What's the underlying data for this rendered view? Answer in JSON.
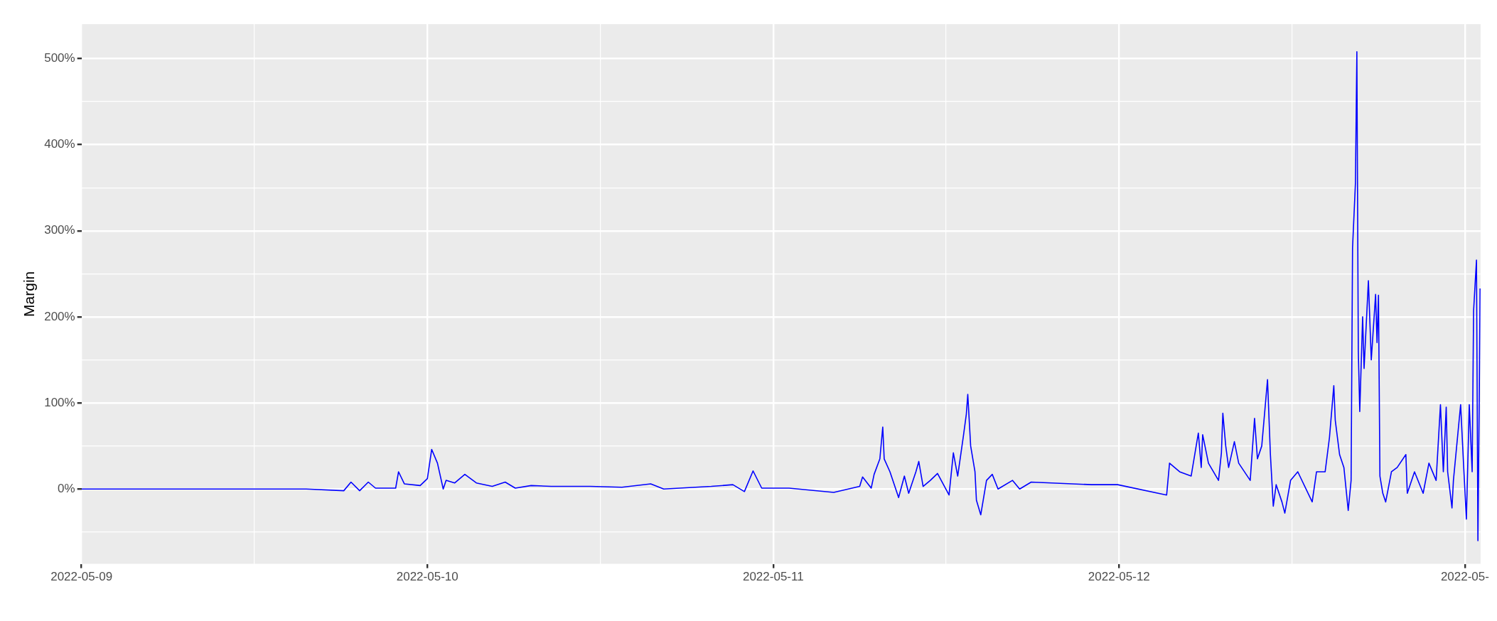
{
  "chart_data": {
    "type": "line",
    "ylabel": "Margin",
    "x": [
      "2022-05-09T00:00",
      "2022-05-09T15:36",
      "2022-05-09T18:12",
      "2022-05-09T18:42",
      "2022-05-09T19:18",
      "2022-05-09T19:54",
      "2022-05-09T20:24",
      "2022-05-09T21:48",
      "2022-05-09T22:00",
      "2022-05-09T22:24",
      "2022-05-09T23:30",
      "2022-05-10T00:00",
      "2022-05-10T00:18",
      "2022-05-10T00:42",
      "2022-05-10T01:06",
      "2022-05-10T01:18",
      "2022-05-10T01:54",
      "2022-05-10T02:36",
      "2022-05-10T03:24",
      "2022-05-10T04:30",
      "2022-05-10T05:24",
      "2022-05-10T06:06",
      "2022-05-10T07:12",
      "2022-05-10T08:36",
      "2022-05-10T11:18",
      "2022-05-10T13:30",
      "2022-05-10T15:30",
      "2022-05-10T16:24",
      "2022-05-10T19:42",
      "2022-05-10T21:12",
      "2022-05-10T22:00",
      "2022-05-10T22:36",
      "2022-05-10T23:12",
      "2022-05-11T01:06",
      "2022-05-11T04:12",
      "2022-05-11T06:00",
      "2022-05-11T06:12",
      "2022-05-11T06:48",
      "2022-05-11T07:00",
      "2022-05-11T07:24",
      "2022-05-11T07:36",
      "2022-05-11T07:42",
      "2022-05-11T08:06",
      "2022-05-11T08:42",
      "2022-05-11T09:06",
      "2022-05-11T09:24",
      "2022-05-11T09:54",
      "2022-05-11T10:06",
      "2022-05-11T10:24",
      "2022-05-11T10:54",
      "2022-05-11T11:24",
      "2022-05-11T12:12",
      "2022-05-11T12:30",
      "2022-05-11T12:48",
      "2022-05-11T13:12",
      "2022-05-11T13:24",
      "2022-05-11T13:30",
      "2022-05-11T13:42",
      "2022-05-11T14:00",
      "2022-05-11T14:06",
      "2022-05-11T14:24",
      "2022-05-11T14:48",
      "2022-05-11T15:12",
      "2022-05-11T15:36",
      "2022-05-11T16:36",
      "2022-05-11T17:06",
      "2022-05-11T17:54",
      "2022-05-11T22:06",
      "2022-05-11T23:54",
      "2022-05-12T03:18",
      "2022-05-12T03:30",
      "2022-05-12T04:12",
      "2022-05-12T05:00",
      "2022-05-12T05:30",
      "2022-05-12T05:42",
      "2022-05-12T05:48",
      "2022-05-12T06:12",
      "2022-05-12T06:54",
      "2022-05-12T07:06",
      "2022-05-12T07:12",
      "2022-05-12T07:24",
      "2022-05-12T07:36",
      "2022-05-12T08:00",
      "2022-05-12T08:18",
      "2022-05-12T09:06",
      "2022-05-12T09:24",
      "2022-05-12T09:36",
      "2022-05-12T09:54",
      "2022-05-12T10:18",
      "2022-05-12T10:30",
      "2022-05-12T10:42",
      "2022-05-12T10:54",
      "2022-05-12T11:18",
      "2022-05-12T11:30",
      "2022-05-12T11:54",
      "2022-05-12T12:24",
      "2022-05-12T13:24",
      "2022-05-12T13:42",
      "2022-05-12T14:18",
      "2022-05-12T14:36",
      "2022-05-12T14:54",
      "2022-05-12T15:00",
      "2022-05-12T15:18",
      "2022-05-12T15:36",
      "2022-05-12T15:54",
      "2022-05-12T16:06",
      "2022-05-12T16:12",
      "2022-05-12T16:24",
      "2022-05-12T16:30",
      "2022-05-12T16:36",
      "2022-05-12T16:42",
      "2022-05-12T16:54",
      "2022-05-12T17:00",
      "2022-05-12T17:18",
      "2022-05-12T17:30",
      "2022-05-12T17:48",
      "2022-05-12T17:54",
      "2022-05-12T18:00",
      "2022-05-12T18:06",
      "2022-05-12T18:18",
      "2022-05-12T18:30",
      "2022-05-12T18:54",
      "2022-05-12T19:18",
      "2022-05-12T19:54",
      "2022-05-12T20:00",
      "2022-05-12T20:30",
      "2022-05-12T21:06",
      "2022-05-12T21:30",
      "2022-05-12T22:00",
      "2022-05-12T22:18",
      "2022-05-12T22:30",
      "2022-05-12T22:42",
      "2022-05-12T22:48",
      "2022-05-12T23:06",
      "2022-05-12T23:12",
      "2022-05-12T23:42",
      "2022-05-12T23:54",
      "2022-05-13T00:06",
      "2022-05-13T00:18",
      "2022-05-13T00:30",
      "2022-05-13T00:36",
      "2022-05-13T00:48",
      "2022-05-13T00:54",
      "2022-05-13T01:00",
      "2022-05-13T01:03"
    ],
    "series": [
      {
        "color": "#0000ff",
        "values": [
          0,
          0,
          -2,
          8,
          -2,
          8,
          1,
          1,
          20,
          6,
          4,
          12,
          46,
          30,
          0,
          10,
          7,
          17,
          7,
          3,
          8,
          1,
          4,
          3,
          3,
          2,
          6,
          0,
          3,
          5,
          -3,
          21,
          1,
          1,
          -4,
          3,
          14,
          1,
          17,
          35,
          72,
          35,
          20,
          -10,
          15,
          -5,
          20,
          32,
          3,
          10,
          18,
          -7,
          42,
          15,
          62,
          87,
          110,
          50,
          20,
          -13,
          -30,
          10,
          17,
          0,
          10,
          0,
          8,
          5,
          5,
          -7,
          30,
          20,
          15,
          65,
          25,
          63,
          30,
          10,
          42,
          88,
          50,
          25,
          55,
          30,
          10,
          82,
          35,
          50,
          127,
          40,
          -20,
          5,
          -15,
          -28,
          10,
          20,
          -15,
          20,
          20,
          60,
          120,
          80,
          40,
          25,
          -25,
          10,
          280,
          355,
          508,
          160,
          90,
          200,
          140,
          242,
          150,
          226,
          170,
          225,
          15,
          -5,
          -15,
          20,
          25,
          40,
          -5,
          20,
          -5,
          30,
          10,
          98,
          20,
          95,
          20,
          -22,
          10,
          98,
          30,
          -35,
          98,
          20,
          207,
          266,
          -60,
          120,
          233
        ]
      }
    ],
    "xlim": [
      "2022-05-09T00:00",
      "2022-05-13T01:05"
    ],
    "xticks": [
      "2022-05-09",
      {
        "value": "2022-05-09T12:00",
        "label": null
      },
      "2022-05-10",
      {
        "value": "2022-05-10T12:00",
        "label": null
      },
      "2022-05-11",
      {
        "value": "2022-05-11T12:00",
        "label": null
      },
      "2022-05-12",
      {
        "value": "2022-05-12T12:00",
        "label": null
      },
      {
        "value": "2022-05-13",
        "label": "2022-05-"
      }
    ],
    "ylim": [
      -87,
      540
    ],
    "yticks": [
      {
        "value": -50,
        "label": null
      },
      {
        "value": 0,
        "label": "0%"
      },
      {
        "value": 50,
        "label": null
      },
      {
        "value": 100,
        "label": "100%"
      },
      {
        "value": 150,
        "label": null
      },
      {
        "value": 200,
        "label": "200%"
      },
      {
        "value": 250,
        "label": null
      },
      {
        "value": 300,
        "label": "300%"
      },
      {
        "value": 350,
        "label": null
      },
      {
        "value": 400,
        "label": "400%"
      },
      {
        "value": 450,
        "label": null
      },
      {
        "value": 500,
        "label": "500%"
      }
    ],
    "grid": true
  }
}
